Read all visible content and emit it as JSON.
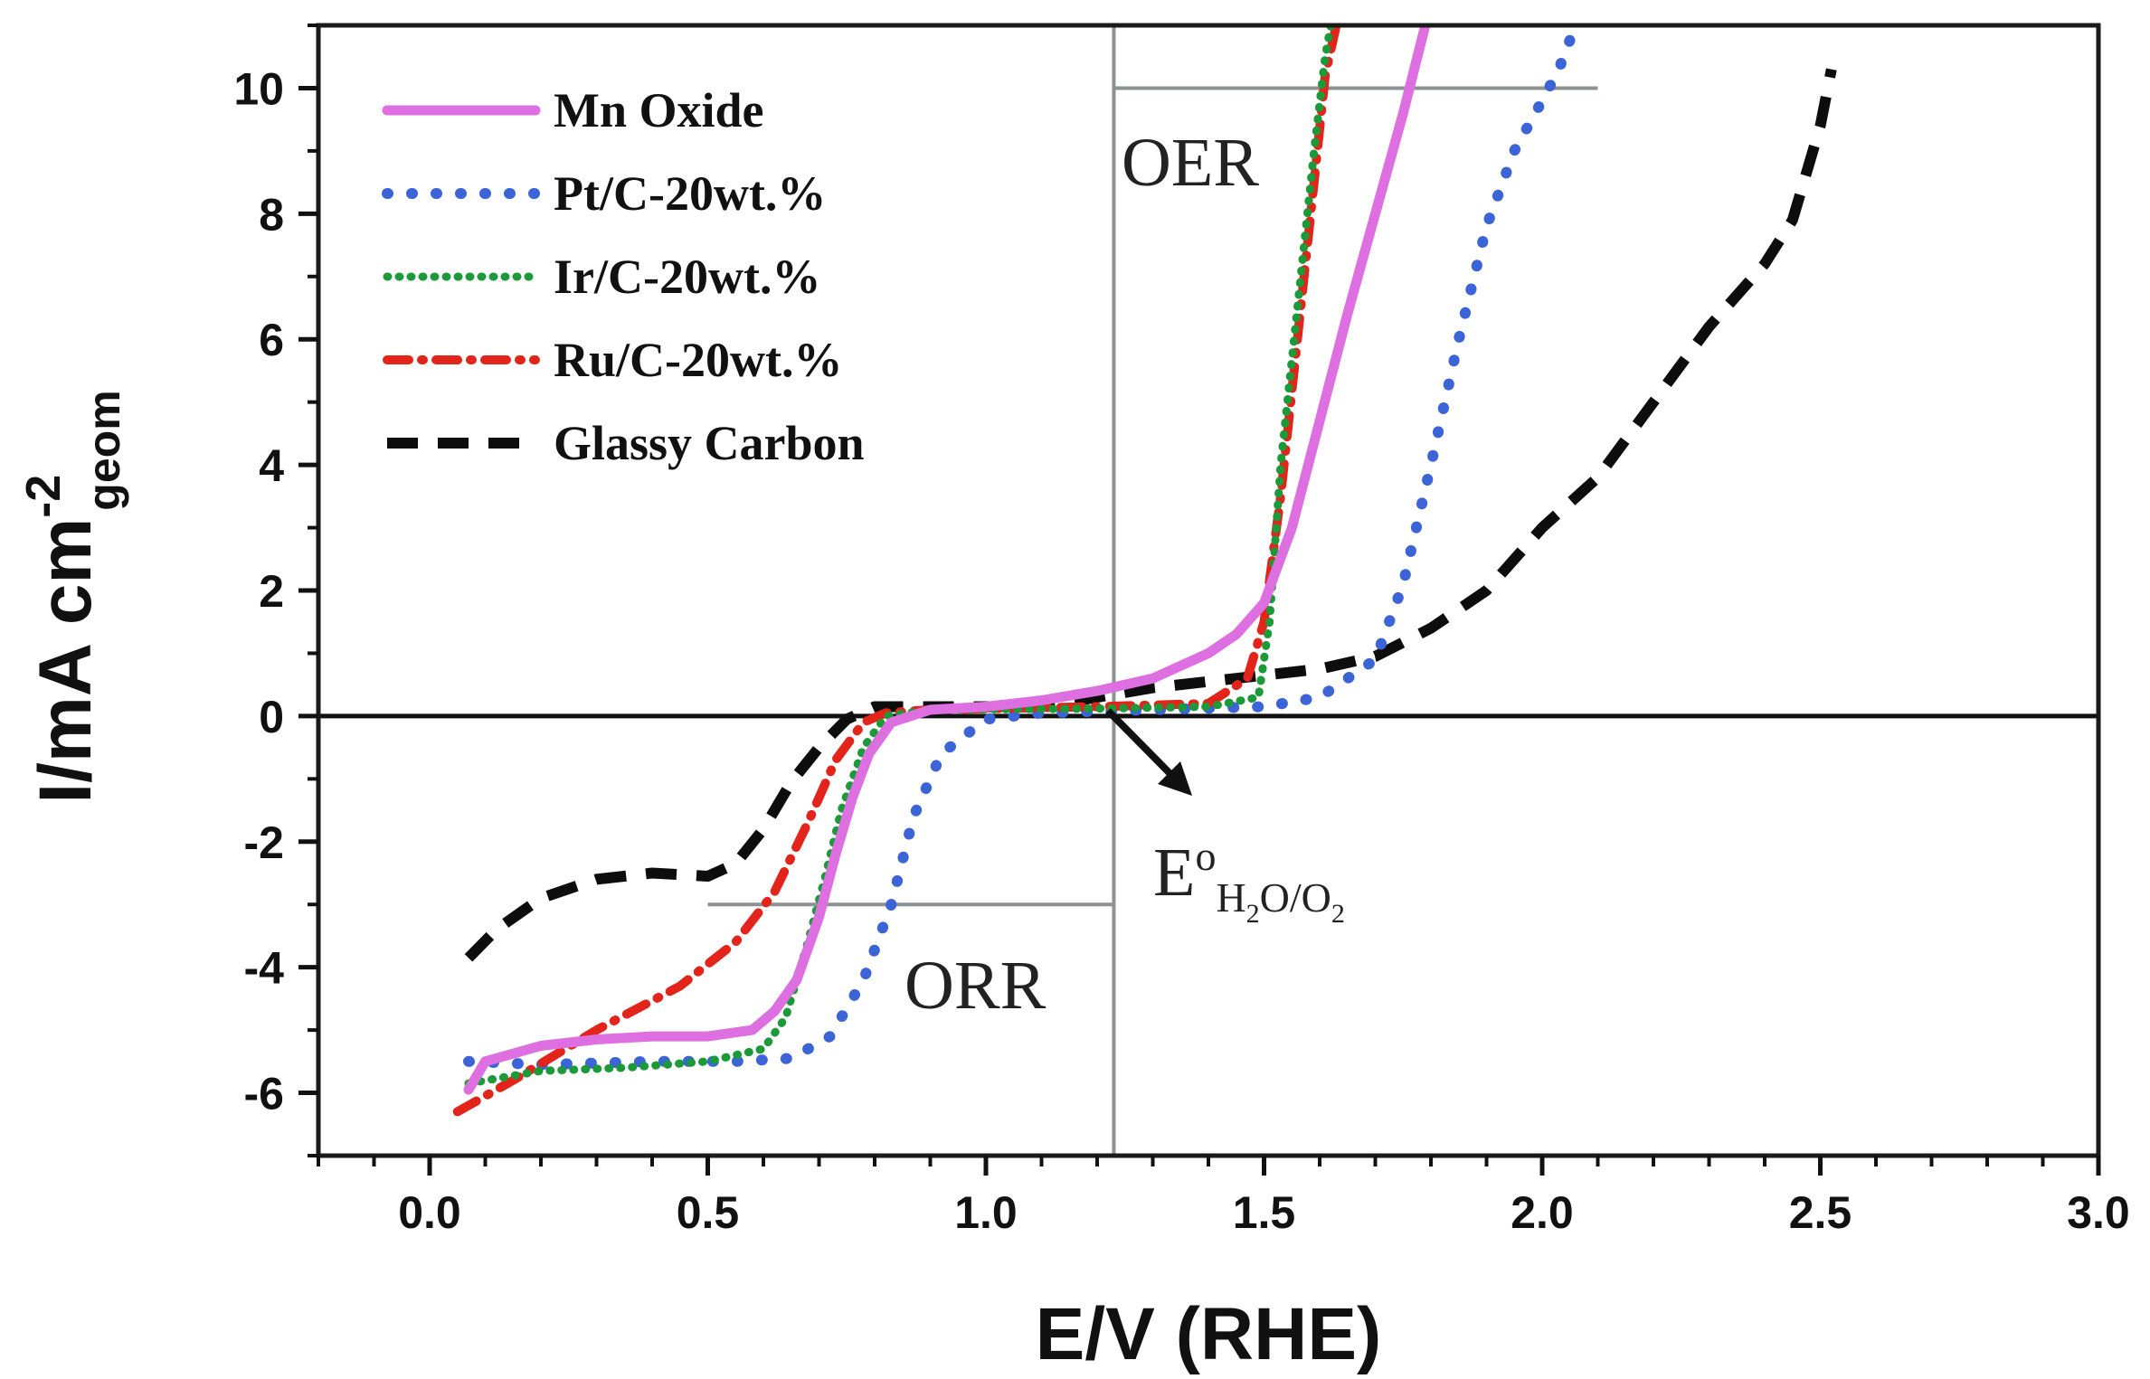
{
  "chart_data": {
    "type": "line",
    "title": "",
    "xlabel": "E/V (RHE)",
    "ylabel": "I/mA cm",
    "ylabel_superscript": "-2",
    "ylabel_subscript": "geom",
    "xlim": [
      -0.2,
      3.0
    ],
    "ylim": [
      -7,
      11
    ],
    "x_ticks": [
      0.0,
      0.5,
      1.0,
      1.5,
      2.0,
      2.5,
      3.0
    ],
    "x_tick_labels": [
      "0.0",
      "0.5",
      "1.0",
      "1.5",
      "2.0",
      "2.5",
      "3.0"
    ],
    "y_ticks": [
      -6,
      -4,
      -2,
      0,
      2,
      4,
      6,
      8,
      10
    ],
    "y_tick_labels": [
      "-6",
      "-4",
      "-2",
      "0",
      "2",
      "4",
      "6",
      "8",
      "10"
    ],
    "grid": false,
    "legend_position": "top-left",
    "reference_lines": {
      "zero_current_y": 0,
      "equilibrium_potential_x": 1.23,
      "oer_benchmark": {
        "y": 10,
        "x_range": [
          1.23,
          2.1
        ]
      },
      "orr_benchmark": {
        "y": -3,
        "x_range": [
          0.5,
          1.23
        ]
      }
    },
    "annotations": {
      "oer_label": "OER",
      "orr_label": "ORR",
      "equilibrium_label": "E",
      "equilibrium_superscript": "o",
      "equilibrium_subscript_parts": [
        "H",
        "2",
        "O/O",
        "2"
      ]
    },
    "series": [
      {
        "name": "Mn Oxide",
        "color": "#dd6fe0",
        "style": "solid",
        "points": [
          [
            0.07,
            -5.95
          ],
          [
            0.1,
            -5.5
          ],
          [
            0.2,
            -5.25
          ],
          [
            0.3,
            -5.15
          ],
          [
            0.4,
            -5.1
          ],
          [
            0.5,
            -5.1
          ],
          [
            0.58,
            -5.0
          ],
          [
            0.62,
            -4.7
          ],
          [
            0.66,
            -4.2
          ],
          [
            0.7,
            -3.2
          ],
          [
            0.73,
            -2.2
          ],
          [
            0.76,
            -1.3
          ],
          [
            0.79,
            -0.6
          ],
          [
            0.83,
            -0.1
          ],
          [
            0.9,
            0.1
          ],
          [
            1.0,
            0.15
          ],
          [
            1.1,
            0.25
          ],
          [
            1.2,
            0.4
          ],
          [
            1.3,
            0.6
          ],
          [
            1.4,
            1.0
          ],
          [
            1.45,
            1.3
          ],
          [
            1.5,
            1.8
          ],
          [
            1.55,
            3.0
          ],
          [
            1.6,
            4.7
          ],
          [
            1.65,
            6.4
          ],
          [
            1.7,
            8.0
          ],
          [
            1.75,
            9.6
          ],
          [
            1.79,
            11.0
          ]
        ]
      },
      {
        "name": "Pt/C-20wt.%",
        "color": "#3b64d6",
        "style": "dotted",
        "points": [
          [
            0.07,
            -5.5
          ],
          [
            0.2,
            -5.55
          ],
          [
            0.4,
            -5.5
          ],
          [
            0.55,
            -5.5
          ],
          [
            0.65,
            -5.45
          ],
          [
            0.72,
            -5.1
          ],
          [
            0.78,
            -4.2
          ],
          [
            0.83,
            -3.0
          ],
          [
            0.87,
            -1.6
          ],
          [
            0.92,
            -0.6
          ],
          [
            1.0,
            -0.05
          ],
          [
            1.1,
            0.05
          ],
          [
            1.3,
            0.1
          ],
          [
            1.5,
            0.15
          ],
          [
            1.6,
            0.3
          ],
          [
            1.7,
            0.9
          ],
          [
            1.75,
            2.1
          ],
          [
            1.8,
            4.0
          ],
          [
            1.85,
            6.0
          ],
          [
            1.9,
            7.8
          ],
          [
            1.95,
            9.0
          ],
          [
            2.0,
            9.8
          ],
          [
            2.03,
            10.3
          ],
          [
            2.06,
            11.0
          ]
        ]
      },
      {
        "name": "Ir/C-20wt.%",
        "color": "#1c9a3a",
        "style": "dotted",
        "points": [
          [
            0.07,
            -5.85
          ],
          [
            0.2,
            -5.65
          ],
          [
            0.35,
            -5.6
          ],
          [
            0.5,
            -5.5
          ],
          [
            0.6,
            -5.3
          ],
          [
            0.64,
            -4.8
          ],
          [
            0.68,
            -3.6
          ],
          [
            0.71,
            -2.6
          ],
          [
            0.74,
            -1.5
          ],
          [
            0.78,
            -0.5
          ],
          [
            0.82,
            0.0
          ],
          [
            0.9,
            0.1
          ],
          [
            1.2,
            0.12
          ],
          [
            1.4,
            0.15
          ],
          [
            1.49,
            0.3
          ],
          [
            1.51,
            1.5
          ],
          [
            1.53,
            4.0
          ],
          [
            1.56,
            6.5
          ],
          [
            1.59,
            9.0
          ],
          [
            1.61,
            10.5
          ],
          [
            1.62,
            11.0
          ]
        ]
      },
      {
        "name": "Ru/C-20wt.%",
        "color": "#e2241a",
        "style": "dash-dot",
        "points": [
          [
            0.05,
            -6.3
          ],
          [
            0.15,
            -5.8
          ],
          [
            0.3,
            -5.0
          ],
          [
            0.45,
            -4.3
          ],
          [
            0.55,
            -3.6
          ],
          [
            0.62,
            -2.8
          ],
          [
            0.68,
            -1.7
          ],
          [
            0.73,
            -0.7
          ],
          [
            0.78,
            -0.1
          ],
          [
            0.82,
            0.05
          ],
          [
            0.9,
            0.1
          ],
          [
            1.2,
            0.15
          ],
          [
            1.4,
            0.2
          ],
          [
            1.47,
            0.6
          ],
          [
            1.5,
            1.5
          ],
          [
            1.53,
            3.5
          ],
          [
            1.56,
            6.0
          ],
          [
            1.59,
            8.5
          ],
          [
            1.61,
            10.2
          ],
          [
            1.63,
            11.0
          ]
        ]
      },
      {
        "name": "Glassy Carbon",
        "color": "#0d0d0d",
        "style": "dashed",
        "points": [
          [
            0.07,
            -3.85
          ],
          [
            0.12,
            -3.4
          ],
          [
            0.2,
            -2.9
          ],
          [
            0.3,
            -2.6
          ],
          [
            0.4,
            -2.5
          ],
          [
            0.5,
            -2.55
          ],
          [
            0.55,
            -2.35
          ],
          [
            0.6,
            -1.8
          ],
          [
            0.65,
            -1.05
          ],
          [
            0.7,
            -0.5
          ],
          [
            0.75,
            -0.05
          ],
          [
            0.8,
            0.15
          ],
          [
            0.9,
            0.15
          ],
          [
            1.1,
            0.15
          ],
          [
            1.2,
            0.3
          ],
          [
            1.3,
            0.45
          ],
          [
            1.45,
            0.6
          ],
          [
            1.6,
            0.75
          ],
          [
            1.7,
            0.95
          ],
          [
            1.8,
            1.4
          ],
          [
            1.9,
            2.0
          ],
          [
            2.0,
            3.0
          ],
          [
            2.1,
            3.8
          ],
          [
            2.2,
            5.0
          ],
          [
            2.3,
            6.2
          ],
          [
            2.4,
            7.2
          ],
          [
            2.45,
            7.9
          ],
          [
            2.5,
            9.4
          ],
          [
            2.52,
            10.3
          ]
        ]
      }
    ]
  }
}
